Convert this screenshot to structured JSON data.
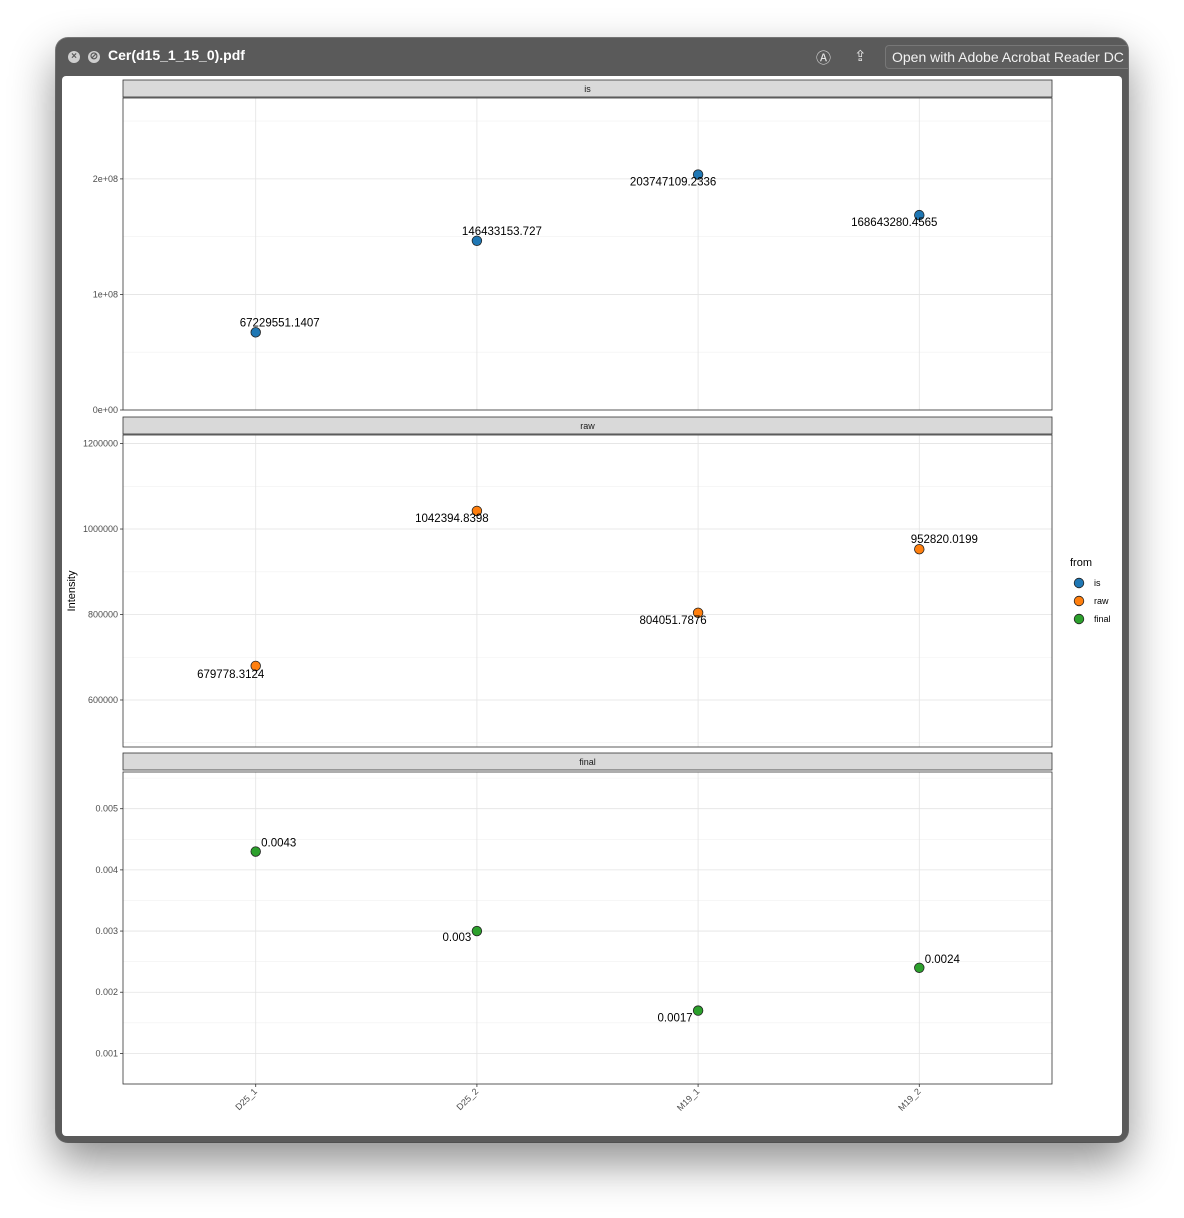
{
  "window": {
    "title": "Cer(d15_1_15_0).pdf",
    "open_with_label": "Open with Adobe Acrobat Reader DC",
    "icons": [
      "close-icon",
      "fullscreen-icon",
      "markup-icon",
      "share-icon"
    ]
  },
  "chart_data": {
    "type": "scatter",
    "ylabel": "Intensity",
    "categories": [
      "D25_1",
      "D25_2",
      "M19_1",
      "M19_2"
    ],
    "legend": {
      "title": "from",
      "placement": "right",
      "entries": [
        "is",
        "raw",
        "final"
      ]
    },
    "colors": {
      "is": "#1f77b4",
      "raw": "#ff7f0e",
      "final": "#2ca02c"
    },
    "grid": true,
    "panels": [
      {
        "strip": "is",
        "ylim": [
          0,
          270000000
        ],
        "ticks": [
          0,
          100000000,
          200000000
        ],
        "tick_labels": [
          "0e+00",
          "1e+08",
          "2e+08"
        ],
        "values": [
          67229551.1407,
          146433153.727,
          203747109.2336,
          168643280.4565
        ],
        "labels": [
          "67229551.1407",
          "146433153.727",
          "203747109.2336",
          "168643280.4565"
        ]
      },
      {
        "strip": "raw",
        "ylim": [
          490000000,
          1220000000
        ],
        "ticks": [
          600000,
          800000,
          1000000,
          1200000
        ],
        "tick_labels": [
          "600000",
          "800000",
          "1000000",
          "1200000"
        ],
        "values": [
          679778.3124,
          1042394.8398,
          804051.7876,
          952820.0199
        ],
        "labels": [
          "679778.3124",
          "1042394.8398",
          "804051.7876",
          "952820.0199"
        ]
      },
      {
        "strip": "final",
        "ylim": [
          0.0005,
          0.0056
        ],
        "ticks": [
          0.001,
          0.002,
          0.003,
          0.004,
          0.005
        ],
        "tick_labels": [
          "0.001",
          "0.002",
          "0.003",
          "0.004",
          "0.005"
        ],
        "values": [
          0.0043,
          0.003,
          0.0017,
          0.0024
        ],
        "labels": [
          "0.0043",
          "0.003",
          "0.0017",
          "0.0024"
        ]
      }
    ]
  }
}
